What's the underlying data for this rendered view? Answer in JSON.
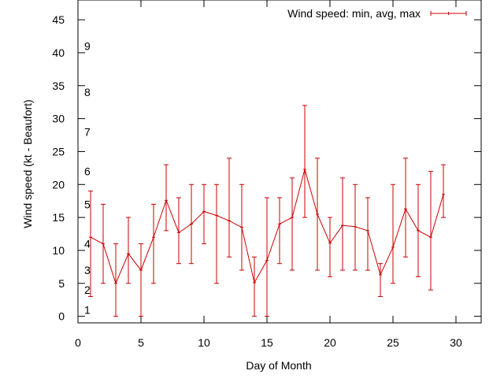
{
  "chart_data": {
    "type": "line",
    "xlabel": "Day of Month",
    "ylabel": "Wind speed (kt - Beaufort)",
    "xlim": [
      0,
      32
    ],
    "ylim": [
      -1,
      48
    ],
    "x_ticks": [
      0,
      5,
      10,
      15,
      20,
      25,
      30
    ],
    "y_ticks": [
      0,
      5,
      10,
      15,
      20,
      25,
      30,
      35,
      40,
      45
    ],
    "grid": false,
    "legend_position": "top-right",
    "beaufort_labels": [
      {
        "label": "1",
        "y": 1
      },
      {
        "label": "2",
        "y": 4
      },
      {
        "label": "3",
        "y": 7
      },
      {
        "label": "4",
        "y": 11
      },
      {
        "label": "5",
        "y": 17
      },
      {
        "label": "6",
        "y": 22
      },
      {
        "label": "7",
        "y": 28
      },
      {
        "label": "8",
        "y": 34
      },
      {
        "label": "9",
        "y": 41
      }
    ],
    "series": [
      {
        "name": "Wind speed: min, avg, max",
        "color": "#cc0000",
        "x": [
          1,
          2,
          3,
          4,
          5,
          6,
          7,
          8,
          9,
          10,
          11,
          12,
          13,
          14,
          15,
          16,
          17,
          18,
          19,
          20,
          21,
          22,
          23,
          24,
          25,
          26,
          27,
          28,
          29
        ],
        "avg": [
          12,
          11,
          5,
          9.5,
          7,
          12,
          17.6,
          12.7,
          14,
          15.9,
          15.3,
          14.5,
          13.5,
          5.1,
          8.5,
          14,
          15,
          22.3,
          15.5,
          11.1,
          13.8,
          13.6,
          13,
          6.3,
          10.5,
          16.3,
          13,
          12,
          18.5
        ],
        "min": [
          3,
          5,
          0,
          5,
          0,
          5,
          13,
          8,
          8,
          11,
          5,
          9,
          7,
          0,
          0,
          8,
          7,
          15,
          7,
          6,
          7,
          7,
          7,
          3,
          5,
          9,
          6,
          4,
          15
        ],
        "max": [
          19,
          17,
          11,
          15,
          11,
          17,
          23,
          18,
          20,
          20,
          20,
          24,
          20,
          9,
          18,
          18,
          21,
          32,
          24,
          15,
          21,
          20,
          18,
          8,
          20,
          24,
          20,
          22,
          23
        ]
      }
    ]
  }
}
